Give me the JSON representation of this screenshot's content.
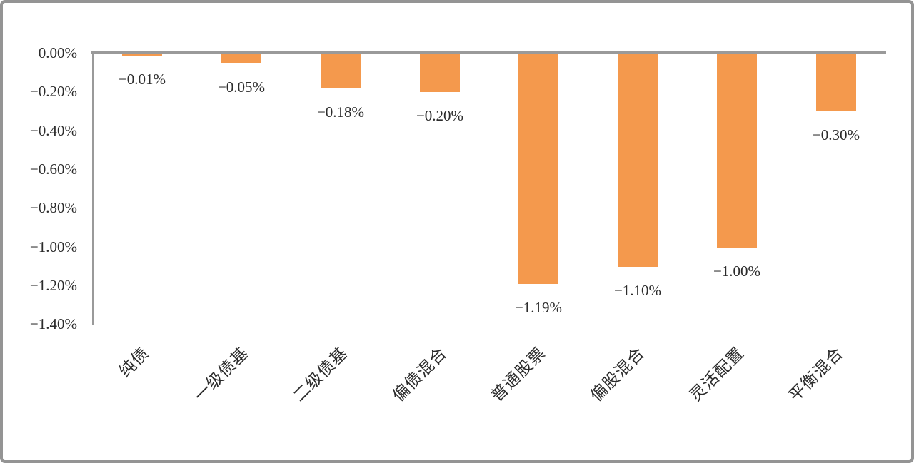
{
  "frame": {
    "background": "#FFFFFF",
    "border_color": "#949494"
  },
  "chart_data": {
    "type": "bar",
    "title": "",
    "xlabel": "",
    "ylabel": "",
    "categories": [
      "纯债",
      "一级债基",
      "二级债基",
      "偏债混合",
      "普通股票",
      "偏股混合",
      "灵活配置",
      "平衡混合"
    ],
    "values": [
      -0.01,
      -0.05,
      -0.18,
      -0.2,
      -1.19,
      -1.1,
      -1.0,
      -0.3
    ],
    "data_labels": [
      "−0.01%",
      "−0.05%",
      "−0.18%",
      "−0.20%",
      "−1.19%",
      "−1.10%",
      "−1.00%",
      "−0.30%"
    ],
    "y_ticks": [
      {
        "label": "0.00%",
        "value": 0.0
      },
      {
        "label": "−0.20%",
        "value": -0.2
      },
      {
        "label": "−0.40%",
        "value": -0.4
      },
      {
        "label": "−0.60%",
        "value": -0.6
      },
      {
        "label": "−0.80%",
        "value": -0.8
      },
      {
        "label": "−1.00%",
        "value": -1.0
      },
      {
        "label": "−1.20%",
        "value": -1.2
      },
      {
        "label": "−1.40%",
        "value": -1.4
      }
    ],
    "ylim": [
      -1.4,
      0.0
    ],
    "unit": "%",
    "grid": false,
    "legend": false,
    "bar_color": "#F4994D",
    "axis_color": "#9A9A9A",
    "text_color": "#2B2B2B",
    "category_label_rotation_deg": -45
  }
}
